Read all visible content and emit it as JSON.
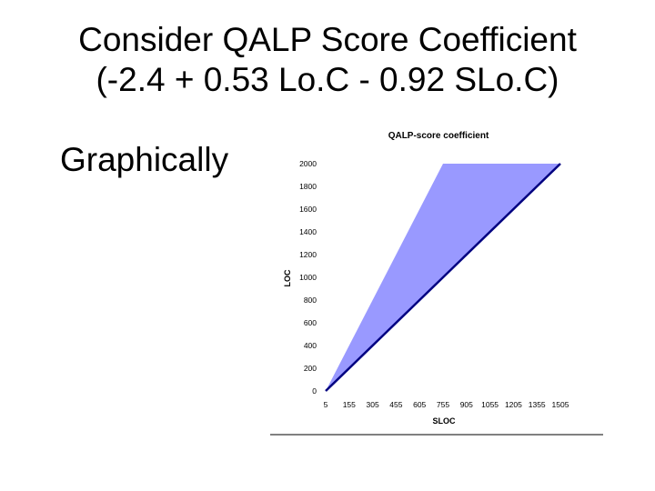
{
  "slide": {
    "title_line1": "Consider QALP Score Coefficient",
    "title_line2": "(-2.4 + 0.53 Lo.C - 0.92 SLo.C)",
    "subheading": "Graphically"
  },
  "chart_data": {
    "type": "area",
    "title": "QALP-score coefficient",
    "xlabel": "SLOC",
    "ylabel": "LOC",
    "x_ticks": [
      "5",
      "155",
      "305",
      "455",
      "605",
      "755",
      "905",
      "1055",
      "1205",
      "1355",
      "1505"
    ],
    "y_ticks": [
      "0",
      "200",
      "400",
      "600",
      "800",
      "1000",
      "1200",
      "1400",
      "1600",
      "1800",
      "2000"
    ],
    "xlim": [
      5,
      1505
    ],
    "ylim": [
      0,
      2000
    ],
    "grid": false,
    "series": [
      {
        "x": [
          5,
          755,
          1505
        ],
        "lower": [
          0,
          1000,
          2000
        ],
        "upper": [
          0,
          2000,
          2000
        ],
        "fill_color": "#9999ff",
        "boundary_color": "#000080"
      }
    ]
  }
}
